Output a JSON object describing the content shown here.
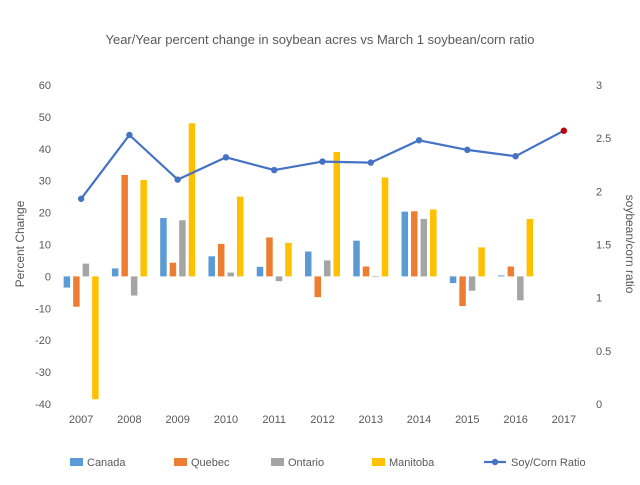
{
  "chart_data": {
    "type": "bar",
    "title": "Year/Year percent change in soybean acres vs March 1 soybean/corn ratio",
    "xlabel": "",
    "ylabel": "Percent Change",
    "y2label": "soybean/corn ratio",
    "categories": [
      "2007",
      "2008",
      "2009",
      "2010",
      "2011",
      "2012",
      "2013",
      "2014",
      "2015",
      "2016",
      "2017"
    ],
    "ylim": [
      -40,
      60
    ],
    "yticks": [
      -40,
      -30,
      -20,
      -10,
      0,
      10,
      20,
      30,
      40,
      50,
      60
    ],
    "y2lim": [
      0,
      3
    ],
    "y2ticks": [
      0,
      0.5,
      1,
      1.5,
      2,
      2.5,
      3
    ],
    "y2ticklabels": [
      "0",
      "0.5",
      "1",
      "1.5",
      "2",
      "2.5",
      "3"
    ],
    "grid": false,
    "legend_position": "bottom",
    "series": [
      {
        "name": "Canada",
        "kind": "bar",
        "color": "#5B9BD5",
        "values": [
          -3.5,
          2.5,
          18.3,
          6.3,
          3,
          7.8,
          11.2,
          20.3,
          -2.1,
          0.3,
          null
        ]
      },
      {
        "name": "Quebec",
        "kind": "bar",
        "color": "#ED7D31",
        "values": [
          -9.5,
          31.8,
          4.3,
          10.2,
          12.2,
          -6.5,
          3.1,
          20.4,
          -9.3,
          3.1,
          null
        ]
      },
      {
        "name": "Ontario",
        "kind": "bar",
        "color": "#A5A5A5",
        "values": [
          4,
          -6,
          17.6,
          1.2,
          -1.5,
          5,
          0.1,
          18,
          -4.5,
          -7.5,
          null
        ]
      },
      {
        "name": "Manitoba",
        "kind": "bar",
        "color": "#FFC000",
        "values": [
          -38.5,
          30.2,
          48,
          25,
          10.5,
          39,
          31,
          21,
          9.1,
          18,
          null
        ]
      },
      {
        "name": "Soy/Corn Ratio",
        "kind": "line",
        "axis": "right",
        "color": "#4472C4",
        "values": [
          1.93,
          2.53,
          2.11,
          2.32,
          2.2,
          2.28,
          2.27,
          2.48,
          2.39,
          2.33,
          2.57
        ]
      }
    ],
    "highlight": {
      "series": "Soy/Corn Ratio",
      "category": "2017",
      "color": "#C00000"
    }
  }
}
